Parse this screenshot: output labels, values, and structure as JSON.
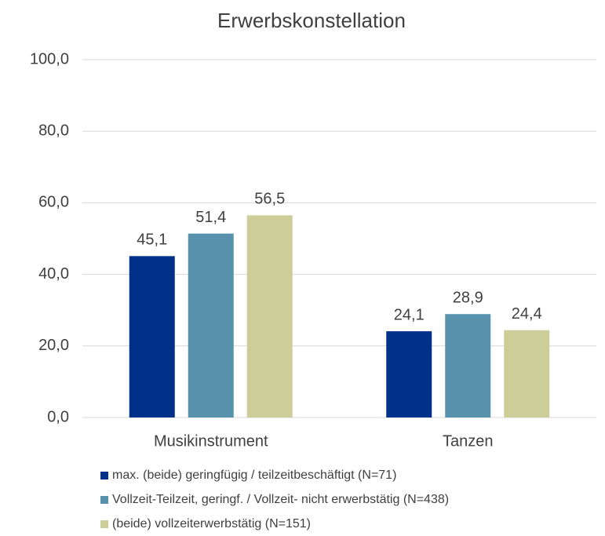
{
  "chart_data": {
    "type": "bar",
    "title": "Erwerbskonstellation",
    "categories": [
      "Musikinstrument",
      "Tanzen"
    ],
    "series": [
      {
        "name": "max. (beide) geringfügig / teilzeitbeschäftigt (N=71)",
        "color": "#003087",
        "values": [
          45.1,
          24.1
        ],
        "value_labels": [
          "45,1",
          "24,1"
        ]
      },
      {
        "name": "Vollzeit-Teilzeit, geringf. / Vollzeit- nicht erwerbstätig (N=438)",
        "color": "#5892ad",
        "values": [
          51.4,
          28.9
        ],
        "value_labels": [
          "51,4",
          "28,9"
        ]
      },
      {
        "name": "(beide) vollzeiterwerbstätig (N=151)",
        "color": "#cdcd9a",
        "values": [
          56.5,
          24.4
        ],
        "value_labels": [
          "56,5",
          "24,4"
        ]
      }
    ],
    "ylim": [
      0,
      100
    ],
    "yticks": [
      {
        "value": 0,
        "label": "0,0"
      },
      {
        "value": 20,
        "label": "20,0"
      },
      {
        "value": 40,
        "label": "40,0"
      },
      {
        "value": 60,
        "label": "60,0"
      },
      {
        "value": 80,
        "label": "80,0"
      },
      {
        "value": 100,
        "label": "100,0"
      }
    ],
    "grid": true,
    "legend": "bottom"
  }
}
